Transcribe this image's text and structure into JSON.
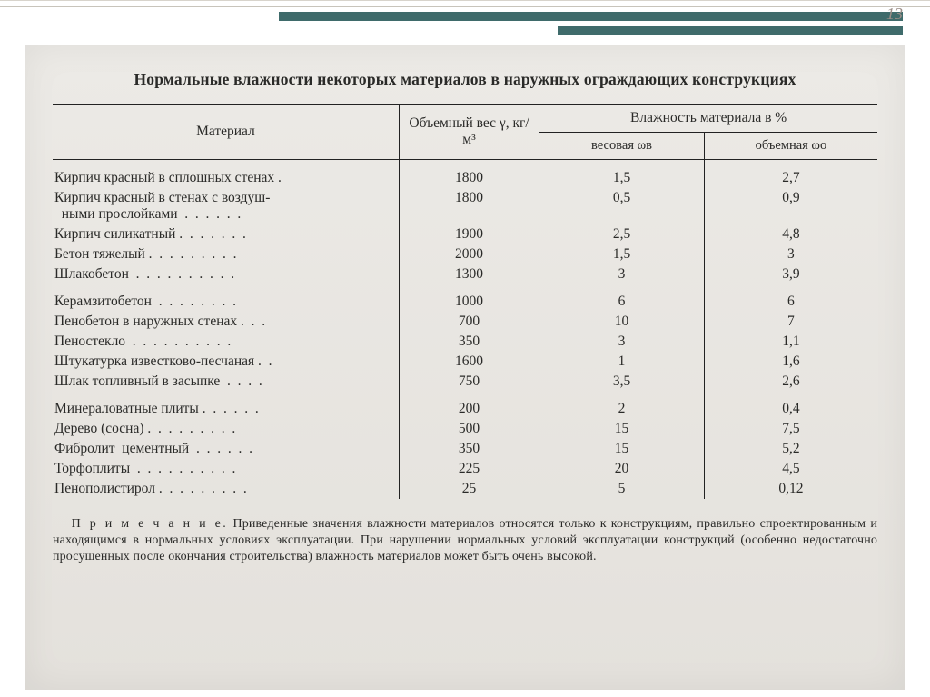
{
  "page_number": "13",
  "colors": {
    "accent": "#3f6b6b",
    "scan_bg": "#e8e6e2",
    "text": "#2a2a28",
    "rule": "#222222"
  },
  "table": {
    "title": "Нормальные влажности некоторых материалов в наружных ограждающих конструкциях",
    "col_material": "Материал",
    "col_weight": "Объемный вес γ, кг/м³",
    "col_humidity": "Влажность материала в %",
    "col_wb": "весовая ωв",
    "col_wo": "объемная ωо",
    "groups": [
      [
        {
          "m": "Кирпич красный в сплошных стенах .",
          "g": "1800",
          "wb": "1,5",
          "wo": "2,7"
        },
        {
          "m": "Кирпич красный в стенах с воздуш-\n  ными прослойками  .  .  .  .  .  .",
          "g": "1800",
          "wb": "0,5",
          "wo": "0,9"
        },
        {
          "m": "Кирпич силикатный .  .  .  .  .  .  .",
          "g": "1900",
          "wb": "2,5",
          "wo": "4,8"
        },
        {
          "m": "Бетон тяжелый .  .  .  .  .  .  .  .  .",
          "g": "2000",
          "wb": "1,5",
          "wo": "3"
        },
        {
          "m": "Шлакобетон  .  .  .  .  .  .  .  .  .  .",
          "g": "1300",
          "wb": "3",
          "wo": "3,9"
        }
      ],
      [
        {
          "m": "Керамзитобетон  .  .  .  .  .  .  .  .",
          "g": "1000",
          "wb": "6",
          "wo": "6"
        },
        {
          "m": "Пенобетон в наружных стенах .  .  .",
          "g": "700",
          "wb": "10",
          "wo": "7"
        },
        {
          "m": "Пеностекло  .  .  .  .  .  .  .  .  .  .",
          "g": "350",
          "wb": "3",
          "wo": "1,1"
        },
        {
          "m": "Штукатурка известково-песчаная .  .",
          "g": "1600",
          "wb": "1",
          "wo": "1,6"
        },
        {
          "m": "Шлак топливный в засыпке  .  .  .  .",
          "g": "750",
          "wb": "3,5",
          "wo": "2,6"
        }
      ],
      [
        {
          "m": "Минераловатные плиты .  .  .  .  .  .",
          "g": "200",
          "wb": "2",
          "wo": "0,4"
        },
        {
          "m": "Дерево (сосна) .  .  .  .  .  .  .  .  .",
          "g": "500",
          "wb": "15",
          "wo": "7,5"
        },
        {
          "m": "Фибролит  цементный  .  .  .  .  .  .",
          "g": "350",
          "wb": "15",
          "wo": "5,2"
        },
        {
          "m": "Торфоплиты  .  .  .  .  .  .  .  .  .  .",
          "g": "225",
          "wb": "20",
          "wo": "4,5"
        },
        {
          "m": "Пенополистирол .  .  .  .  .  .  .  .  .",
          "g": "25",
          "wb": "5",
          "wo": "0,12"
        }
      ]
    ]
  },
  "note_lead": "П р и м е ч а н и е.",
  "note_body": " Приведенные значения влажности материалов относятся только к конструкциям, правильно спроектированным и находящимся в нормальных условиях эксплуатации. При нарушении нормальных условий эксплуатации конструкций (особенно недостаточно просушенных после окончания строительства) влажность материалов может быть очень высокой."
}
